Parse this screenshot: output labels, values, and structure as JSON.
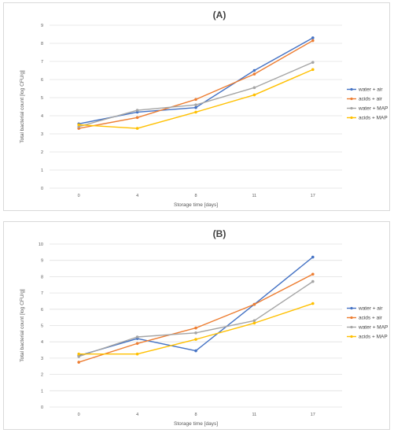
{
  "chart_data": [
    {
      "type": "line",
      "title": "(A)",
      "xlabel": "Storage time [days]",
      "ylabel": "Total bacterial count [log CFU/g]",
      "categories": [
        "0",
        "4",
        "8",
        "11",
        "17"
      ],
      "ylim": [
        0,
        9
      ],
      "yticks": [
        "0",
        "1",
        "2",
        "3",
        "4",
        "5",
        "6",
        "7",
        "8",
        "9"
      ],
      "grid": true,
      "legend": "right",
      "series": [
        {
          "name": "water + air",
          "color": "#4472C4",
          "values": [
            3.55,
            4.2,
            4.45,
            6.5,
            8.3
          ]
        },
        {
          "name": "acids + air",
          "color": "#ED7D31",
          "values": [
            3.3,
            3.9,
            4.9,
            6.3,
            8.15
          ]
        },
        {
          "name": "water + MAP",
          "color": "#A5A5A5",
          "values": [
            3.4,
            4.3,
            4.6,
            5.55,
            6.95
          ]
        },
        {
          "name": "acids + MAP",
          "color": "#FFC000",
          "values": [
            3.5,
            3.3,
            4.2,
            5.15,
            6.55
          ]
        }
      ]
    },
    {
      "type": "line",
      "title": "(B)",
      "xlabel": "Storage time [days]",
      "ylabel": "Total bacterial count [log CFU/g]",
      "categories": [
        "0",
        "4",
        "8",
        "11",
        "17"
      ],
      "ylim": [
        0,
        10
      ],
      "yticks": [
        "0",
        "1",
        "2",
        "3",
        "4",
        "5",
        "6",
        "7",
        "8",
        "9",
        "10"
      ],
      "grid": true,
      "legend": "right",
      "series": [
        {
          "name": "water + air",
          "color": "#4472C4",
          "values": [
            3.15,
            4.2,
            3.45,
            6.3,
            9.2
          ]
        },
        {
          "name": "acids + air",
          "color": "#ED7D31",
          "values": [
            2.75,
            3.9,
            4.85,
            6.3,
            8.15
          ]
        },
        {
          "name": "water + MAP",
          "color": "#A5A5A5",
          "values": [
            3.1,
            4.3,
            4.55,
            5.3,
            7.7
          ]
        },
        {
          "name": "acids + MAP",
          "color": "#FFC000",
          "values": [
            3.25,
            3.25,
            4.15,
            5.15,
            6.35
          ]
        }
      ]
    }
  ]
}
